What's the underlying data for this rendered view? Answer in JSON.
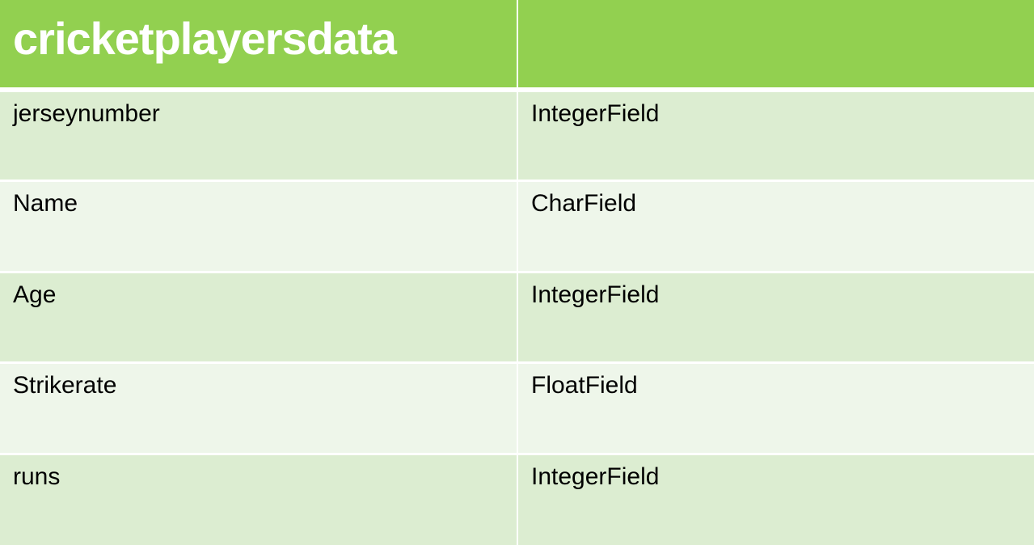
{
  "table": {
    "header": [
      "cricketplayersdata",
      ""
    ],
    "rows": [
      [
        "jerseynumber",
        "IntegerField"
      ],
      [
        "Name",
        "CharField"
      ],
      [
        "Age",
        "IntegerField"
      ],
      [
        "Strikerate",
        "FloatField"
      ],
      [
        "runs",
        "IntegerField"
      ]
    ]
  },
  "colors": {
    "header_bg": "#92d050",
    "row_dark_bg": "#dcedd1",
    "row_light_bg": "#eef6ea",
    "header_text": "#ffffff",
    "body_text": "#000000"
  }
}
